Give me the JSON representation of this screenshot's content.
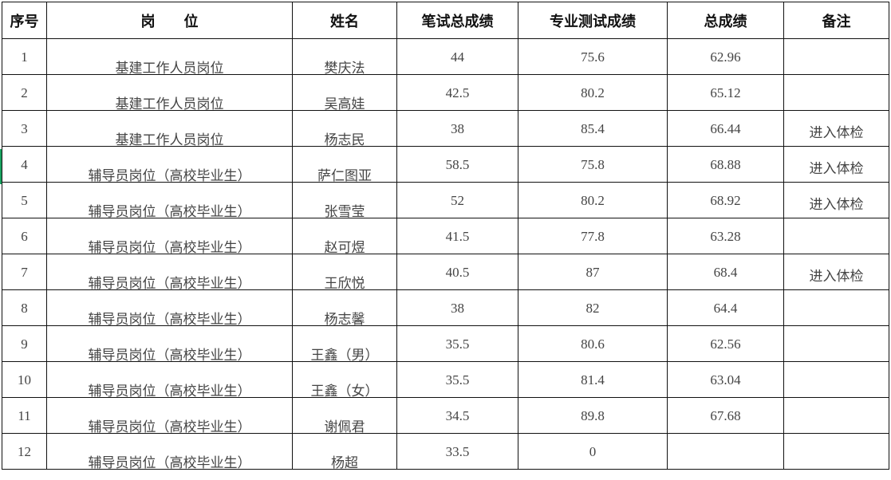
{
  "headers": [
    "序号",
    "岗　　位",
    "姓名",
    "笔试总成绩",
    "专业测试成绩",
    "总成绩",
    "备注"
  ],
  "rows": [
    {
      "no": "1",
      "post": "基建工作人员岗位",
      "name": "樊庆法",
      "written": "44",
      "professional": "75.6",
      "total": "62.96",
      "note": ""
    },
    {
      "no": "2",
      "post": "基建工作人员岗位",
      "name": "吴高娃",
      "written": "42.5",
      "professional": "80.2",
      "total": "65.12",
      "note": ""
    },
    {
      "no": "3",
      "post": "基建工作人员岗位",
      "name": "杨志民",
      "written": "38",
      "professional": "85.4",
      "total": "66.44",
      "note": "进入体检"
    },
    {
      "no": "4",
      "post": "辅导员岗位（高校毕业生）",
      "name": "萨仁图亚",
      "written": "58.5",
      "professional": "75.8",
      "total": "68.88",
      "note": "进入体检"
    },
    {
      "no": "5",
      "post": "辅导员岗位（高校毕业生）",
      "name": "张雪莹",
      "written": "52",
      "professional": "80.2",
      "total": "68.92",
      "note": "进入体检"
    },
    {
      "no": "6",
      "post": "辅导员岗位（高校毕业生）",
      "name": "赵可煜",
      "written": "41.5",
      "professional": "77.8",
      "total": "63.28",
      "note": ""
    },
    {
      "no": "7",
      "post": "辅导员岗位（高校毕业生）",
      "name": "王欣悦",
      "written": "40.5",
      "professional": "87",
      "total": "68.4",
      "note": "进入体检"
    },
    {
      "no": "8",
      "post": "辅导员岗位（高校毕业生）",
      "name": "杨志馨",
      "written": "38",
      "professional": "82",
      "total": "64.4",
      "note": ""
    },
    {
      "no": "9",
      "post": "辅导员岗位（高校毕业生）",
      "name": "王鑫（男）",
      "written": "35.5",
      "professional": "80.6",
      "total": "62.56",
      "note": ""
    },
    {
      "no": "10",
      "post": "辅导员岗位（高校毕业生）",
      "name": "王鑫（女）",
      "written": "35.5",
      "professional": "81.4",
      "total": "63.04",
      "note": ""
    },
    {
      "no": "11",
      "post": "辅导员岗位（高校毕业生）",
      "name": "谢佩君",
      "written": "34.5",
      "professional": "89.8",
      "total": "67.68",
      "note": ""
    },
    {
      "no": "12",
      "post": "辅导员岗位（高校毕业生）",
      "name": "杨超",
      "written": "33.5",
      "professional": "0",
      "total": "",
      "note": ""
    }
  ],
  "colors": {
    "selection_marker": "#1aa260",
    "grid": "#111111"
  }
}
